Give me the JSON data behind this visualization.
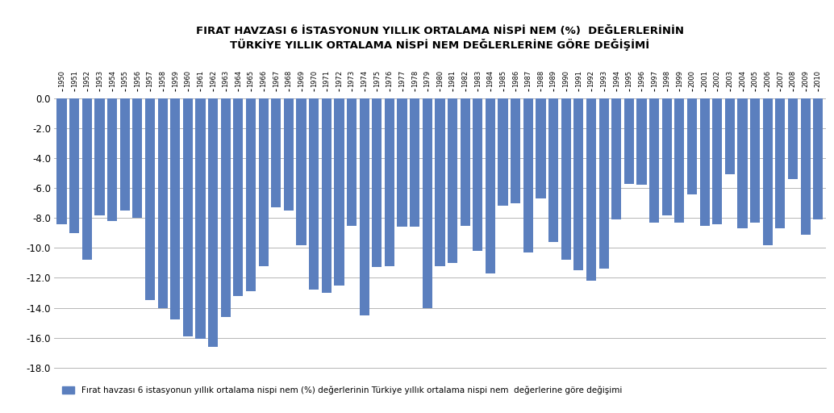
{
  "title": "FIRAT HAVZASI 6 İSTASYONUN YILLIK ORTALAMA NİSPİ NEM (%)  DEĞLERLERİNİN\nTÜRKİYE YILLIK ORTALAMA NİSPİ NEM DEĞLERLERİNE GÖRE DEĞİŞİMİ",
  "legend_label": "Fırat havzası 6 istasyonun yıllık ortalama nispi nem (%) değerlerinin Türkiye yıllık ortalama nispi nem  değerlerine göre değişimi",
  "bar_color": "#5B7FBE",
  "background_color": "#FFFFFF",
  "ylim": [
    -18.0,
    0.5
  ],
  "yticks": [
    0.0,
    -2.0,
    -4.0,
    -6.0,
    -8.0,
    -10.0,
    -12.0,
    -14.0,
    -16.0,
    -18.0
  ],
  "years": [
    1950,
    1951,
    1952,
    1953,
    1954,
    1955,
    1956,
    1957,
    1958,
    1959,
    1960,
    1961,
    1962,
    1963,
    1964,
    1965,
    1966,
    1967,
    1968,
    1969,
    1970,
    1971,
    1972,
    1973,
    1974,
    1975,
    1976,
    1977,
    1978,
    1979,
    1980,
    1981,
    1982,
    1983,
    1984,
    1985,
    1986,
    1987,
    1988,
    1989,
    1990,
    1991,
    1992,
    1993,
    1994,
    1995,
    1996,
    1997,
    1998,
    1999,
    2000,
    2001,
    2002,
    2003,
    2004,
    2005,
    2006,
    2007,
    2008,
    2009,
    2010
  ],
  "values": [
    -8.4,
    -9.0,
    -10.8,
    -7.8,
    -8.2,
    -7.5,
    -8.0,
    -13.5,
    -14.0,
    -14.8,
    -15.9,
    -16.1,
    -16.6,
    -14.6,
    -13.2,
    -12.9,
    -11.2,
    -7.3,
    -7.5,
    -9.8,
    -12.8,
    -13.0,
    -12.5,
    -8.5,
    -14.5,
    -11.3,
    -11.2,
    -8.6,
    -8.6,
    -14.0,
    -11.2,
    -11.0,
    -8.5,
    -10.2,
    -11.7,
    -7.2,
    -7.0,
    -10.3,
    -6.7,
    -9.6,
    -10.8,
    -11.5,
    -12.2,
    -11.4,
    -8.1,
    -5.7,
    -5.8,
    -8.3,
    -7.8,
    -8.3,
    -6.4,
    -8.5,
    -8.4,
    -5.1,
    -8.7,
    -8.3,
    -9.8,
    -8.7,
    -5.4,
    -9.1,
    -8.1
  ],
  "title_fontsize": 9.5,
  "tick_fontsize": 6.0,
  "ytick_fontsize": 8.5,
  "legend_fontsize": 7.5
}
